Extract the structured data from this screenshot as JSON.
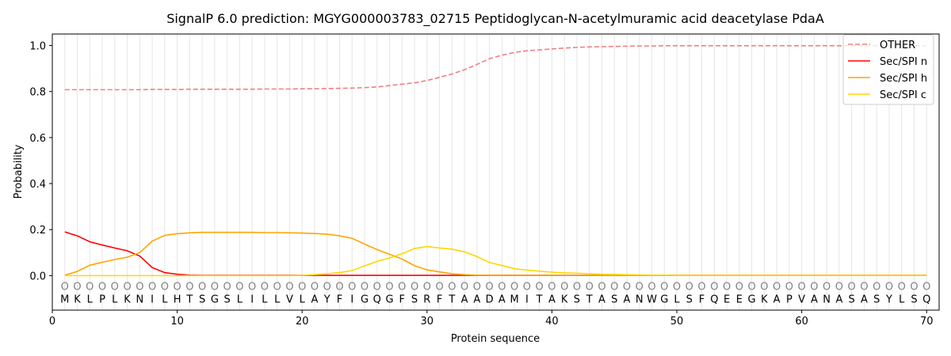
{
  "chart_data": {
    "type": "line",
    "title": "SignalP 6.0 prediction: MGYG000003783_02715 Peptidoglycan-N-acetylmuramic acid deacetylase PdaA",
    "xlabel": "Protein sequence",
    "ylabel": "Probability",
    "xlim": [
      0,
      71
    ],
    "ylim": [
      -0.15,
      1.05
    ],
    "xticks": [
      0,
      10,
      20,
      30,
      40,
      50,
      60,
      70
    ],
    "yticks": [
      0.0,
      0.2,
      0.4,
      0.6,
      0.8,
      1.0
    ],
    "xtick_labels": [
      "0",
      "10",
      "20",
      "30",
      "40",
      "50",
      "60",
      "70"
    ],
    "ytick_labels": [
      "0.0",
      "0.2",
      "0.4",
      "0.6",
      "0.8",
      "1.0"
    ],
    "legend_position": "top-right",
    "grid": "vertical lines at each residue",
    "residue_letter_y": -0.1,
    "marker_y": -0.045,
    "sequence": [
      "M",
      "K",
      "L",
      "P",
      "L",
      "K",
      "N",
      "I",
      "L",
      "H",
      "T",
      "S",
      "G",
      "S",
      "L",
      "I",
      "L",
      "L",
      "V",
      "L",
      "A",
      "Y",
      "F",
      "I",
      "G",
      "Q",
      "G",
      "F",
      "S",
      "R",
      "F",
      "T",
      "A",
      "A",
      "D",
      "A",
      "M",
      "I",
      "T",
      "A",
      "K",
      "S",
      "T",
      "A",
      "S",
      "A",
      "N",
      "W",
      "G",
      "L",
      "S",
      "F",
      "Q",
      "E",
      "E",
      "G",
      "K",
      "A",
      "P",
      "V",
      "A",
      "N",
      "A",
      "S",
      "A",
      "S",
      "Y",
      "L",
      "S",
      "Q"
    ],
    "position_labels": [
      "O",
      "O",
      "O",
      "O",
      "O",
      "O",
      "O",
      "O",
      "O",
      "O",
      "O",
      "O",
      "O",
      "O",
      "O",
      "O",
      "O",
      "O",
      "O",
      "O",
      "O",
      "O",
      "O",
      "O",
      "O",
      "O",
      "O",
      "O",
      "O",
      "O",
      "O",
      "O",
      "O",
      "O",
      "O",
      "O",
      "O",
      "O",
      "O",
      "O",
      "O",
      "O",
      "O",
      "O",
      "O",
      "O",
      "O",
      "O",
      "O",
      "O",
      "O",
      "O",
      "O",
      "O",
      "O",
      "O",
      "O",
      "O",
      "O",
      "O",
      "O",
      "O",
      "O",
      "O",
      "O",
      "O",
      "O",
      "O",
      "O",
      "O"
    ],
    "series": [
      {
        "name": "OTHER",
        "color": "#f08080",
        "dash": true,
        "values": [
          0.808,
          0.808,
          0.808,
          0.808,
          0.808,
          0.808,
          0.808,
          0.809,
          0.809,
          0.809,
          0.81,
          0.81,
          0.81,
          0.81,
          0.81,
          0.81,
          0.811,
          0.811,
          0.811,
          0.812,
          0.812,
          0.813,
          0.814,
          0.815,
          0.817,
          0.82,
          0.826,
          0.832,
          0.838,
          0.848,
          0.862,
          0.876,
          0.895,
          0.918,
          0.943,
          0.958,
          0.97,
          0.977,
          0.981,
          0.985,
          0.989,
          0.992,
          0.994,
          0.995,
          0.996,
          0.997,
          0.998,
          0.998,
          0.999,
          0.999,
          0.999,
          0.999,
          0.999,
          0.999,
          0.999,
          0.999,
          0.999,
          0.999,
          0.999,
          0.999,
          0.999,
          0.999,
          0.999,
          0.999,
          0.999,
          0.999,
          0.999,
          0.999,
          0.999,
          0.999
        ]
      },
      {
        "name": "Sec/SPI n",
        "color": "#ff0000",
        "dash": false,
        "values": [
          0.19,
          0.173,
          0.147,
          0.133,
          0.12,
          0.108,
          0.085,
          0.035,
          0.013,
          0.006,
          0.002,
          0.001,
          0.001,
          0.001,
          0.001,
          0.001,
          0.001,
          0.001,
          0.001,
          0.001,
          0.001,
          0.001,
          0.001,
          0.001,
          0.001,
          0.001,
          0.001,
          0.001,
          0.001,
          0.001,
          0.001,
          0.001,
          0.001,
          0.001,
          0.001,
          0.001,
          0.001,
          0.001,
          0.001,
          0.001,
          0.001,
          0.001,
          0.001,
          0.001,
          0.001,
          0.001,
          0.001,
          0.001,
          0.001,
          0.001,
          0.001,
          0.001,
          0.001,
          0.001,
          0.001,
          0.001,
          0.001,
          0.001,
          0.001,
          0.001,
          0.001,
          0.001,
          0.001,
          0.001,
          0.001,
          0.001,
          0.001,
          0.001,
          0.001,
          0.001
        ]
      },
      {
        "name": "Sec/SPI h",
        "color": "#ffa500",
        "dash": false,
        "values": [
          0.002,
          0.018,
          0.045,
          0.058,
          0.07,
          0.08,
          0.1,
          0.15,
          0.175,
          0.182,
          0.186,
          0.188,
          0.188,
          0.188,
          0.188,
          0.188,
          0.187,
          0.187,
          0.186,
          0.185,
          0.183,
          0.18,
          0.173,
          0.162,
          0.137,
          0.113,
          0.093,
          0.072,
          0.043,
          0.025,
          0.016,
          0.008,
          0.004,
          0.002,
          0.001,
          0.001,
          0.001,
          0.001,
          0.001,
          0.001,
          0.001,
          0.001,
          0.001,
          0.001,
          0.001,
          0.001,
          0.001,
          0.001,
          0.001,
          0.001,
          0.001,
          0.001,
          0.001,
          0.001,
          0.001,
          0.001,
          0.001,
          0.001,
          0.001,
          0.001,
          0.001,
          0.001,
          0.001,
          0.001,
          0.001,
          0.001,
          0.001,
          0.001,
          0.001,
          0.001
        ]
      },
      {
        "name": "Sec/SPI c",
        "color": "#ffd700",
        "dash": false,
        "values": [
          0.0,
          0.0,
          0.0,
          0.0,
          0.0,
          0.0,
          0.0,
          0.0,
          0.0,
          0.0,
          0.0,
          0.0,
          0.0,
          0.0,
          0.0,
          0.0,
          0.0,
          0.0,
          0.0,
          0.001,
          0.004,
          0.008,
          0.013,
          0.022,
          0.042,
          0.062,
          0.077,
          0.095,
          0.118,
          0.126,
          0.12,
          0.115,
          0.103,
          0.083,
          0.057,
          0.044,
          0.03,
          0.024,
          0.019,
          0.015,
          0.012,
          0.01,
          0.008,
          0.006,
          0.005,
          0.004,
          0.003,
          0.002,
          0.002,
          0.001,
          0.001,
          0.001,
          0.001,
          0.001,
          0.001,
          0.001,
          0.001,
          0.001,
          0.001,
          0.001,
          0.001,
          0.001,
          0.001,
          0.001,
          0.001,
          0.001,
          0.001,
          0.001,
          0.001,
          0.001
        ]
      }
    ]
  }
}
